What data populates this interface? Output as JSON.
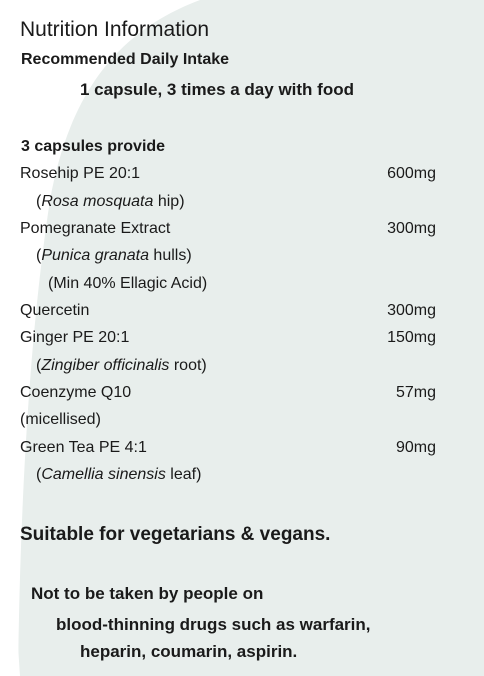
{
  "title": "Nutrition Information",
  "intake_heading": "Recommended Daily Intake",
  "dosage": "1 capsule, 3 times a day with food",
  "provide_heading": "3 capsules provide",
  "ingredients": [
    {
      "name": "Rosehip PE 20:1",
      "amount": "600mg",
      "source_latin": "Rosa mosquata",
      "source_part": " hip"
    },
    {
      "name": "Pomegranate Extract",
      "amount": "300mg",
      "source_latin": "Punica granata",
      "source_part": " hulls",
      "extra": "(Min 40% Ellagic Acid)"
    },
    {
      "name": "Quercetin",
      "amount": "300mg"
    },
    {
      "name": "Ginger PE 20:1",
      "amount": "150mg",
      "source_latin": "Zingiber officinalis",
      "source_part": " root"
    },
    {
      "name": "Coenzyme Q10",
      "amount": "57mg",
      "extra": "(micellised)"
    },
    {
      "name": "Green Tea PE 4:1",
      "amount": "90mg",
      "source_latin": "Camellia sinensis",
      "source_part": " leaf"
    }
  ],
  "suitability": "Suitable for vegetarians & vegans.",
  "warning": {
    "line1": "Not to be taken by people on",
    "line2": "blood-thinning drugs such as warfarin,",
    "line3": "heparin, coumarin, aspirin."
  },
  "colors": {
    "background_shape": "#e8eeec",
    "text": "#1a1a1a"
  }
}
